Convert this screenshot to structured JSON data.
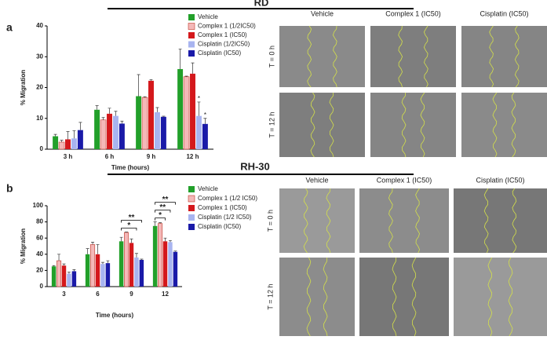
{
  "panels": [
    {
      "letter": "a",
      "heading": "RD",
      "columns": [
        "Vehicle",
        "Complex 1 (IC50)",
        "Cisplatin (IC50)"
      ],
      "rows": [
        "T = 0 h",
        "T = 12 h"
      ]
    },
    {
      "letter": "b",
      "heading": "RH-30",
      "columns": [
        "Vehicle",
        "Complex 1 (IC50)",
        "Cisplatin (IC50)"
      ],
      "rows": [
        "T = 0 h",
        "T = 12 h"
      ]
    }
  ],
  "chart_data": [
    {
      "type": "bar",
      "ylabel": "% Migration",
      "xlabel": "Time (hours)",
      "categories": [
        "3 h",
        "6 h",
        "9 h",
        "12 h"
      ],
      "ylim": [
        0,
        40
      ],
      "yticks": [
        0,
        10,
        20,
        30,
        40
      ],
      "series": [
        {
          "name": "Vehicle",
          "color": "#22a02a",
          "values": [
            4.2,
            12.8,
            17.2,
            26
          ],
          "errors": [
            0.6,
            1.3,
            7,
            6.5
          ]
        },
        {
          "name": "Complex 1 (1/2IC50)",
          "color": "#f4b8b8",
          "values": [
            2.3,
            9.5,
            16.8,
            23.5
          ],
          "errors": [
            0.6,
            0.8,
            0.2,
            0.2
          ]
        },
        {
          "name": "Complex 1 (IC50)",
          "color": "#d4181c",
          "values": [
            3.2,
            11.5,
            22.2,
            24.5
          ],
          "errors": [
            2.5,
            1.8,
            0.4,
            3.5
          ]
        },
        {
          "name": "Cisplatin (1/2IC50)",
          "color": "#a8b4f0",
          "values": [
            3.5,
            10.8,
            12,
            10.8
          ],
          "errors": [
            2.5,
            1.5,
            1.5,
            4.5
          ]
        },
        {
          "name": "Cisplatin (IC50)",
          "color": "#1a1aa8",
          "values": [
            6.2,
            8.3,
            10.5,
            8.2
          ],
          "errors": [
            2.5,
            0.8,
            0.2,
            1.8
          ]
        }
      ],
      "annotations": [
        {
          "label": "*",
          "category": 3,
          "series": 3
        },
        {
          "label": "*",
          "category": 3,
          "series": 4
        }
      ]
    },
    {
      "type": "bar",
      "ylabel": "% Migration",
      "xlabel": "Time (hours)",
      "categories": [
        "3",
        "6",
        "9",
        "12"
      ],
      "ylim": [
        0,
        100
      ],
      "yticks": [
        0,
        20,
        40,
        60,
        80,
        100
      ],
      "series": [
        {
          "name": "Vehicle",
          "color": "#22a02a",
          "values": [
            25,
            40,
            56,
            75
          ],
          "errors": [
            1,
            7,
            5,
            5
          ]
        },
        {
          "name": "Complex 1 (1/2 IC50)",
          "color": "#f4b8b8",
          "values": [
            32,
            52,
            67,
            78
          ],
          "errors": [
            8,
            3,
            0.5,
            1
          ]
        },
        {
          "name": "Complex 1 (IC50)",
          "color": "#d4181c",
          "values": [
            26,
            40,
            54,
            56
          ],
          "errors": [
            2,
            12,
            5,
            4
          ]
        },
        {
          "name": "Cisplatin (1/2 IC50)",
          "color": "#a8b4f0",
          "values": [
            16,
            28,
            36,
            55
          ],
          "errors": [
            2,
            2,
            5,
            2
          ]
        },
        {
          "name": "Cisplatin  (IC50)",
          "color": "#1a1aa8",
          "values": [
            19,
            29,
            33,
            43
          ],
          "errors": [
            2,
            3,
            1,
            1
          ]
        }
      ],
      "brackets": [
        {
          "label": "**",
          "category": 2,
          "series": [
            0,
            4
          ]
        },
        {
          "label": "*",
          "category": 2,
          "series": [
            0,
            3
          ]
        },
        {
          "label": "**",
          "category": 3,
          "series": [
            0,
            4
          ]
        },
        {
          "label": "**",
          "category": 3,
          "series": [
            0,
            3
          ]
        },
        {
          "label": "*",
          "category": 3,
          "series": [
            0,
            2
          ]
        }
      ]
    }
  ]
}
